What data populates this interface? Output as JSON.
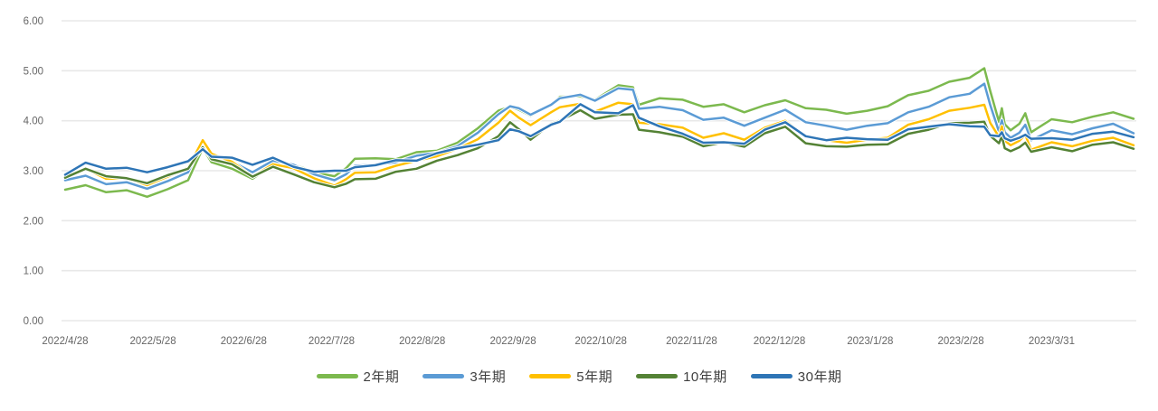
{
  "chart_data": {
    "type": "line",
    "title": "",
    "xlabel": "",
    "ylabel": "",
    "grid": true,
    "legend_position": "bottom",
    "y_axis": {
      "min": 0,
      "max": 6,
      "step": 1,
      "tick_labels": [
        "0.00",
        "1.00",
        "2.00",
        "3.00",
        "4.00",
        "5.00",
        "6.00"
      ]
    },
    "x_axis": {
      "tick_labels": [
        "2022/4/28",
        "2022/5/28",
        "2022/6/28",
        "2022/7/28",
        "2022/8/28",
        "2022/9/28",
        "2022/10/28",
        "2022/11/28",
        "2022/12/28",
        "2023/1/28",
        "2023/2/28",
        "2023/3/31"
      ]
    },
    "x": [
      "2022/4/28",
      "2022/5/5",
      "2022/5/12",
      "2022/5/19",
      "2022/5/26",
      "2022/6/2",
      "2022/6/9",
      "2022/6/14",
      "2022/6/17",
      "2022/6/24",
      "2022/7/1",
      "2022/7/8",
      "2022/7/15",
      "2022/7/22",
      "2022/7/29",
      "2022/8/2",
      "2022/8/5",
      "2022/8/12",
      "2022/8/19",
      "2022/8/26",
      "2022/9/2",
      "2022/9/9",
      "2022/9/16",
      "2022/9/23",
      "2022/9/27",
      "2022/9/30",
      "2022/10/4",
      "2022/10/11",
      "2022/10/14",
      "2022/10/21",
      "2022/10/26",
      "2022/11/3",
      "2022/11/8",
      "2022/11/10",
      "2022/11/17",
      "2022/11/25",
      "2022/12/2",
      "2022/12/9",
      "2022/12/16",
      "2022/12/23",
      "2022/12/30",
      "2023/1/6",
      "2023/1/13",
      "2023/1/20",
      "2023/1/27",
      "2023/2/3",
      "2023/2/10",
      "2023/2/17",
      "2023/2/24",
      "2023/3/3",
      "2023/3/8",
      "2023/3/10",
      "2023/3/13",
      "2023/3/14",
      "2023/3/15",
      "2023/3/17",
      "2023/3/20",
      "2023/3/22",
      "2023/3/24",
      "2023/3/31",
      "2023/4/7",
      "2023/4/14",
      "2023/4/21",
      "2023/4/28"
    ],
    "series": [
      {
        "key": "2y",
        "name": "2年期",
        "color": "#7CB94E",
        "values": [
          2.62,
          2.71,
          2.57,
          2.61,
          2.48,
          2.63,
          2.81,
          3.45,
          3.17,
          3.04,
          2.84,
          3.12,
          3.13,
          2.97,
          2.89,
          3.05,
          3.24,
          3.25,
          3.23,
          3.37,
          3.4,
          3.56,
          3.85,
          4.2,
          4.28,
          4.22,
          4.1,
          4.31,
          4.48,
          4.49,
          4.42,
          4.71,
          4.67,
          4.32,
          4.45,
          4.42,
          4.28,
          4.33,
          4.17,
          4.31,
          4.41,
          4.25,
          4.22,
          4.14,
          4.2,
          4.29,
          4.51,
          4.6,
          4.78,
          4.86,
          5.05,
          4.6,
          3.98,
          4.25,
          3.93,
          3.81,
          3.94,
          4.15,
          3.77,
          4.03,
          3.97,
          4.08,
          4.17,
          4.04
        ]
      },
      {
        "key": "3y",
        "name": "3年期",
        "color": "#5B9BD5",
        "values": [
          2.81,
          2.9,
          2.73,
          2.77,
          2.64,
          2.79,
          2.97,
          3.6,
          3.34,
          3.18,
          2.97,
          3.2,
          3.12,
          2.93,
          2.81,
          2.93,
          3.1,
          3.12,
          3.17,
          3.3,
          3.36,
          3.49,
          3.76,
          4.13,
          4.29,
          4.25,
          4.12,
          4.32,
          4.45,
          4.52,
          4.4,
          4.65,
          4.62,
          4.24,
          4.28,
          4.21,
          4.02,
          4.06,
          3.9,
          4.06,
          4.22,
          3.97,
          3.9,
          3.82,
          3.9,
          3.95,
          4.17,
          4.28,
          4.47,
          4.54,
          4.74,
          4.32,
          3.78,
          4.01,
          3.77,
          3.66,
          3.76,
          3.92,
          3.61,
          3.81,
          3.73,
          3.85,
          3.94,
          3.75
        ]
      },
      {
        "key": "5y",
        "name": "5年期",
        "color": "#FFC000",
        "values": [
          2.88,
          3.04,
          2.84,
          2.85,
          2.71,
          2.88,
          3.06,
          3.61,
          3.34,
          3.18,
          2.88,
          3.13,
          3.05,
          2.85,
          2.7,
          2.83,
          2.96,
          2.97,
          3.1,
          3.2,
          3.29,
          3.44,
          3.63,
          3.96,
          4.2,
          4.06,
          3.91,
          4.17,
          4.27,
          4.34,
          4.18,
          4.36,
          4.33,
          3.96,
          3.93,
          3.86,
          3.66,
          3.75,
          3.62,
          3.86,
          4.0,
          3.69,
          3.61,
          3.56,
          3.62,
          3.66,
          3.92,
          4.03,
          4.2,
          4.26,
          4.32,
          3.96,
          3.68,
          3.89,
          3.6,
          3.51,
          3.6,
          3.72,
          3.42,
          3.57,
          3.49,
          3.6,
          3.66,
          3.51
        ]
      },
      {
        "key": "10y",
        "name": "10年期",
        "color": "#548235",
        "values": [
          2.86,
          3.04,
          2.89,
          2.85,
          2.75,
          2.91,
          3.04,
          3.47,
          3.23,
          3.13,
          2.88,
          3.08,
          2.93,
          2.77,
          2.67,
          2.74,
          2.83,
          2.84,
          2.98,
          3.04,
          3.2,
          3.31,
          3.45,
          3.69,
          3.97,
          3.83,
          3.62,
          3.94,
          4.0,
          4.21,
          4.04,
          4.12,
          4.13,
          3.82,
          3.77,
          3.68,
          3.49,
          3.57,
          3.48,
          3.75,
          3.88,
          3.55,
          3.49,
          3.48,
          3.52,
          3.53,
          3.74,
          3.82,
          3.95,
          3.96,
          3.98,
          3.7,
          3.55,
          3.69,
          3.45,
          3.39,
          3.47,
          3.56,
          3.38,
          3.47,
          3.39,
          3.52,
          3.57,
          3.44
        ]
      },
      {
        "key": "30y",
        "name": "30年期",
        "color": "#2E75B6",
        "values": [
          2.92,
          3.16,
          3.04,
          3.06,
          2.97,
          3.07,
          3.19,
          3.43,
          3.28,
          3.26,
          3.12,
          3.26,
          3.08,
          2.98,
          3.0,
          3.0,
          3.07,
          3.11,
          3.21,
          3.2,
          3.35,
          3.45,
          3.52,
          3.61,
          3.83,
          3.79,
          3.69,
          3.92,
          3.98,
          4.33,
          4.17,
          4.15,
          4.31,
          4.06,
          3.89,
          3.74,
          3.56,
          3.57,
          3.54,
          3.82,
          3.97,
          3.69,
          3.61,
          3.66,
          3.63,
          3.62,
          3.83,
          3.88,
          3.93,
          3.89,
          3.88,
          3.71,
          3.69,
          3.77,
          3.65,
          3.6,
          3.66,
          3.72,
          3.64,
          3.65,
          3.62,
          3.74,
          3.78,
          3.67
        ]
      }
    ]
  },
  "styles": {
    "background": "#FFFFFF",
    "grid_color": "#E8E8E8",
    "axis_text_color": "#666666",
    "legend_text_color": "#3F3F3F",
    "line_halo_color": "#FFFFFF"
  }
}
